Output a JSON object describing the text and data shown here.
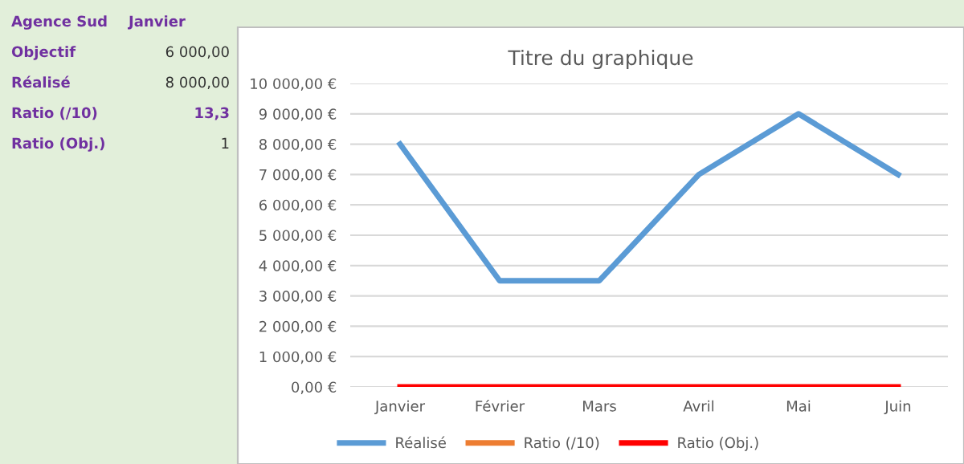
{
  "chart_data": {
    "type": "line",
    "title": "Titre du graphique",
    "categories": [
      "Janvier",
      "Février",
      "Mars",
      "Avril",
      "Mai",
      "Juin"
    ],
    "series": [
      {
        "name": "Réalisé",
        "color": "#5b9bd5",
        "values": [
          8000,
          3500,
          3500,
          7000,
          9000,
          7000
        ]
      },
      {
        "name": "Ratio (/10)",
        "color": "#ed7d31",
        "values": [
          null,
          null,
          null,
          null,
          null,
          null
        ]
      },
      {
        "name": "Ratio (Obj.)",
        "color": "#ff0000",
        "values": [
          0,
          0,
          0,
          0,
          0,
          0
        ]
      }
    ],
    "ylim": [
      0,
      10000
    ],
    "yticks": [
      {
        "value": 0,
        "label": "0,00 €"
      },
      {
        "value": 1000,
        "label": "1 000,00 €"
      },
      {
        "value": 2000,
        "label": "2 000,00 €"
      },
      {
        "value": 3000,
        "label": "3 000,00 €"
      },
      {
        "value": 4000,
        "label": "4 000,00 €"
      },
      {
        "value": 5000,
        "label": "5 000,00 €"
      },
      {
        "value": 6000,
        "label": "6 000,00 €"
      },
      {
        "value": 7000,
        "label": "7 000,00 €"
      },
      {
        "value": 8000,
        "label": "8 000,00 €"
      },
      {
        "value": 9000,
        "label": "9 000,00 €"
      },
      {
        "value": 10000,
        "label": "10 000,00 €"
      }
    ],
    "grid": "y",
    "legend": "bottom",
    "marker": "none",
    "line_style": "solid",
    "annotations": [
      "Agence Sud",
      "Janvier",
      "Objectif",
      "6 000,00",
      "Réalisé",
      "8 000,00",
      "Ratio (/10)",
      "13,3",
      "Ratio (Obj.)",
      "1"
    ]
  }
}
